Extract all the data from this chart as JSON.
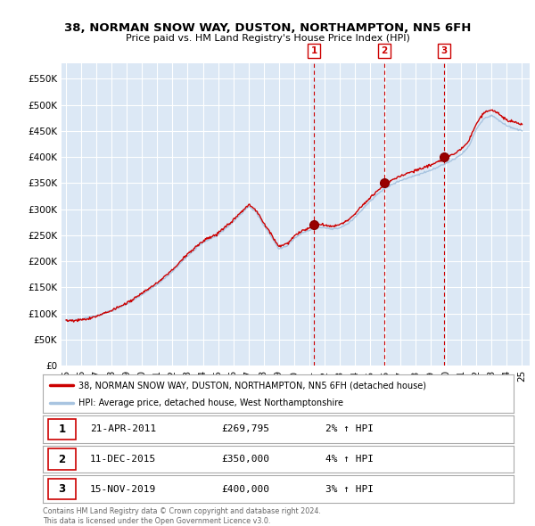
{
  "title": "38, NORMAN SNOW WAY, DUSTON, NORTHAMPTON, NN5 6FH",
  "subtitle": "Price paid vs. HM Land Registry's House Price Index (HPI)",
  "ylim": [
    0,
    580000
  ],
  "yticks": [
    0,
    50000,
    100000,
    150000,
    200000,
    250000,
    300000,
    350000,
    400000,
    450000,
    500000,
    550000
  ],
  "ytick_labels": [
    "£0",
    "£50K",
    "£100K",
    "£150K",
    "£200K",
    "£250K",
    "£300K",
    "£350K",
    "£400K",
    "£450K",
    "£500K",
    "£550K"
  ],
  "legend_line1": "38, NORMAN SNOW WAY, DUSTON, NORTHAMPTON, NN5 6FH (detached house)",
  "legend_line2": "HPI: Average price, detached house, West Northamptonshire",
  "sale_labels": [
    {
      "num": "1",
      "date": "21-APR-2011",
      "price": "£269,795",
      "pct": "2% ↑ HPI"
    },
    {
      "num": "2",
      "date": "11-DEC-2015",
      "price": "£350,000",
      "pct": "4% ↑ HPI"
    },
    {
      "num": "3",
      "date": "15-NOV-2019",
      "price": "£400,000",
      "pct": "3% ↑ HPI"
    }
  ],
  "sale_years": [
    2011.3,
    2015.95,
    2019.87
  ],
  "sale_prices": [
    269795,
    350000,
    400000
  ],
  "copyright": "Contains HM Land Registry data © Crown copyright and database right 2024.\nThis data is licensed under the Open Government Licence v3.0.",
  "hpi_color": "#a8c4e0",
  "price_color": "#cc0000",
  "background_plot": "#dce8f5",
  "grid_color": "#ffffff",
  "title_color": "#000000",
  "hpi_breakpoints_x": [
    1995.0,
    1996.0,
    1997.0,
    1998.0,
    1999.0,
    2000.0,
    2001.0,
    2002.0,
    2003.0,
    2004.0,
    2005.0,
    2006.0,
    2007.0,
    2007.5,
    2008.0,
    2008.5,
    2009.0,
    2009.5,
    2010.0,
    2010.5,
    2011.0,
    2011.5,
    2012.0,
    2012.5,
    2013.0,
    2013.5,
    2014.0,
    2014.5,
    2015.0,
    2015.5,
    2016.0,
    2016.5,
    2017.0,
    2017.5,
    2018.0,
    2018.5,
    2019.0,
    2019.5,
    2020.0,
    2020.5,
    2021.0,
    2021.5,
    2022.0,
    2022.5,
    2023.0,
    2023.5,
    2024.0,
    2024.5,
    2025.0
  ],
  "hpi_breakpoints_y": [
    85000,
    87000,
    95000,
    105000,
    118000,
    135000,
    155000,
    180000,
    210000,
    235000,
    250000,
    275000,
    305000,
    295000,
    270000,
    248000,
    225000,
    230000,
    245000,
    255000,
    260000,
    268000,
    265000,
    262000,
    265000,
    272000,
    285000,
    300000,
    315000,
    328000,
    340000,
    348000,
    355000,
    360000,
    365000,
    370000,
    375000,
    382000,
    388000,
    395000,
    405000,
    420000,
    455000,
    475000,
    480000,
    470000,
    460000,
    455000,
    450000
  ]
}
